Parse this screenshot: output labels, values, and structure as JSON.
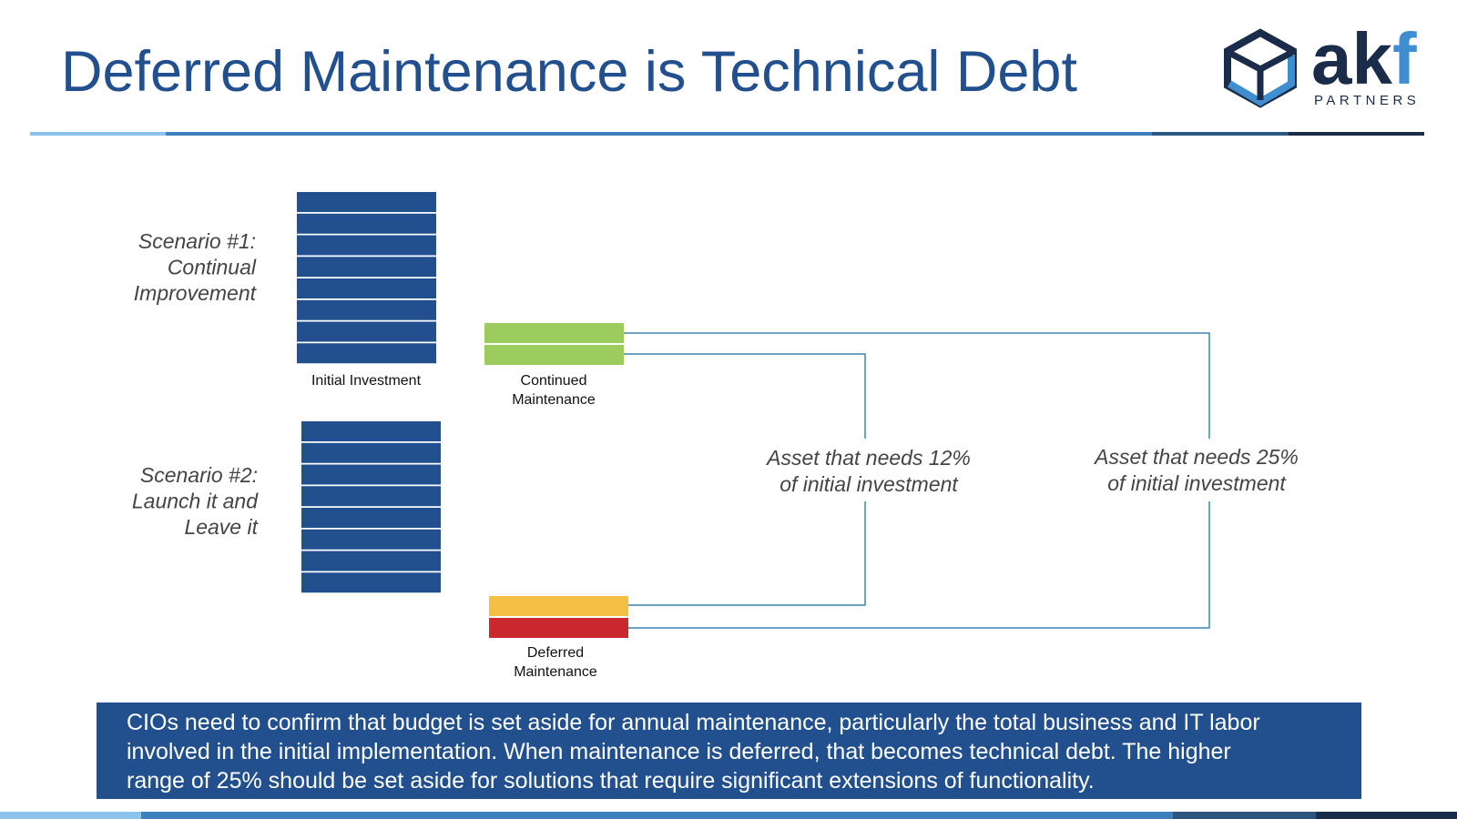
{
  "header": {
    "title": "Deferred Maintenance is Technical Debt",
    "logo": {
      "word_main": "ak",
      "word_accent": "f",
      "subtitle": "PARTNERS"
    }
  },
  "scenarios": [
    {
      "lines": [
        "Scenario #1:",
        "Continual",
        "Improvement"
      ]
    },
    {
      "lines": [
        "Scenario #2:",
        "Launch it and",
        "Leave it"
      ]
    }
  ],
  "blocks": {
    "initial": {
      "label": [
        "Initial Investment"
      ]
    },
    "continued": {
      "label": [
        "Continued",
        "Maintenance"
      ]
    },
    "deferred": {
      "label": [
        "Deferred",
        "Maintenance"
      ]
    }
  },
  "annotations": [
    {
      "lines": [
        "Asset that needs 12%",
        "of initial investment"
      ]
    },
    {
      "lines": [
        "Asset that needs 25%",
        "of initial investment"
      ]
    }
  ],
  "footer": {
    "lines": [
      "CIOs need to confirm that budget is set aside for annual maintenance, particularly the total business and IT labor",
      "involved in the initial implementation.  When maintenance is deferred, that becomes technical debt.  The higher",
      "range of 25% should be set aside for solutions that require significant extensions of functionality."
    ]
  }
}
